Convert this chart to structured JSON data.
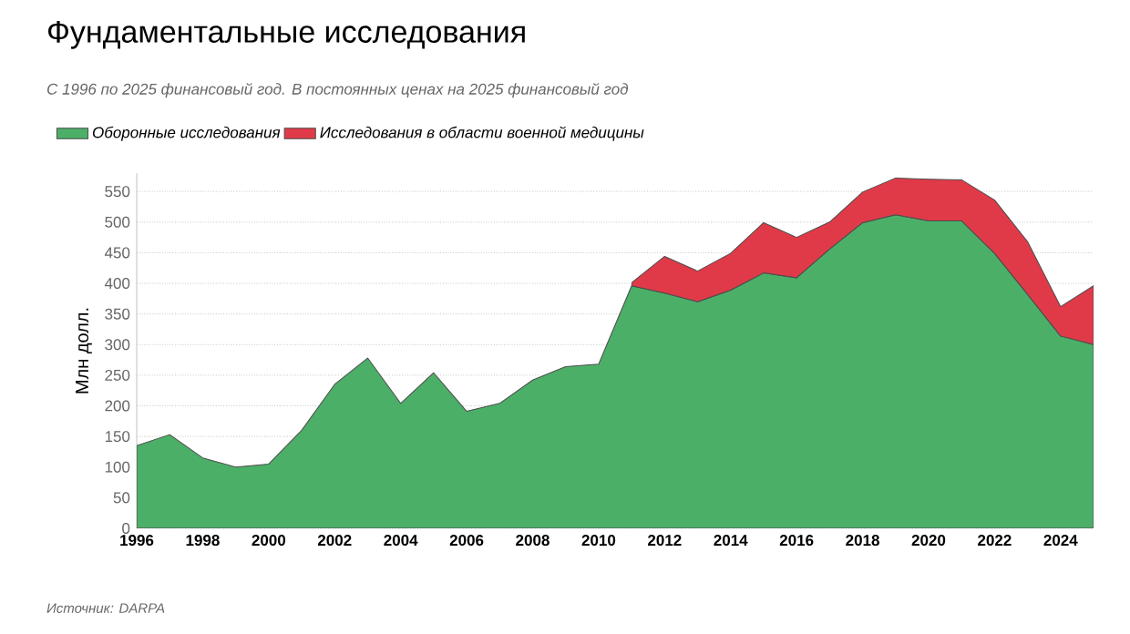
{
  "chart_data": {
    "type": "area",
    "stacked": true,
    "title": "Фундаментальные исследования",
    "subtitle": "С 1996 по 2025 финансовый год. В постоянных ценах на 2025 финансовый год",
    "ylabel": "Млн долл.",
    "annotations": [
      "Источник: DARPA"
    ],
    "x": [
      1996,
      1997,
      1998,
      1999,
      2000,
      2001,
      2002,
      2003,
      2004,
      2005,
      2006,
      2007,
      2008,
      2009,
      2010,
      2011,
      2012,
      2013,
      2014,
      2015,
      2016,
      2017,
      2018,
      2019,
      2020,
      2021,
      2022,
      2023,
      2024,
      2025
    ],
    "series": [
      {
        "name": "Оборонные исследования",
        "color": "#4caf68",
        "values": [
          135,
          153,
          115,
          100,
          105,
          160,
          235,
          278,
          204,
          254,
          191,
          204,
          242,
          264,
          268,
          396,
          384,
          370,
          389,
          417,
          409,
          456,
          499,
          512,
          502,
          502,
          449,
          382,
          314,
          300
        ]
      },
      {
        "name": "Исследования в области военной медицины",
        "color": "#e03a48",
        "values": [
          null,
          null,
          null,
          null,
          null,
          null,
          null,
          null,
          null,
          null,
          null,
          null,
          null,
          null,
          null,
          5,
          60,
          50,
          60,
          82,
          66,
          44,
          50,
          60,
          68,
          67,
          87,
          86,
          48,
          96
        ]
      }
    ],
    "xlim": [
      1996,
      2025
    ],
    "xticks": [
      1996,
      1998,
      2000,
      2002,
      2004,
      2006,
      2008,
      2010,
      2012,
      2014,
      2016,
      2018,
      2020,
      2022,
      2024
    ],
    "ylim": [
      0,
      580
    ],
    "yticks": [
      0,
      50,
      100,
      150,
      200,
      250,
      300,
      350,
      400,
      450,
      500,
      550
    ],
    "grid": "y",
    "legend": "top left"
  }
}
